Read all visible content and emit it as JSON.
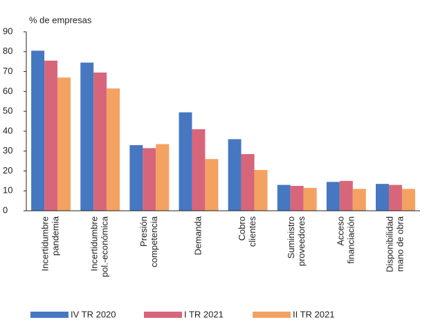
{
  "chart_data": {
    "type": "bar",
    "y_label": "% de empresas",
    "categories": [
      [
        "Incertidumbre",
        "pandemia"
      ],
      [
        "Incertidumbre",
        "pol.-económica"
      ],
      [
        "Presión",
        "competencia"
      ],
      [
        "Demanda"
      ],
      [
        "Cobro",
        "clientes"
      ],
      [
        "Suministro",
        "proveedores"
      ],
      [
        "Acceso",
        "financiación"
      ],
      [
        "Disponibilidad",
        "mano de obra"
      ]
    ],
    "series": [
      {
        "name": "IV TR 2020",
        "color": "#4677c1",
        "values": [
          80.5,
          74.5,
          33,
          49.5,
          36,
          13,
          14.5,
          13.5
        ]
      },
      {
        "name": "I TR 2021",
        "color": "#d8667b",
        "values": [
          75.5,
          69.5,
          31.5,
          41,
          28.5,
          12.5,
          15,
          13
        ]
      },
      {
        "name": "II TR 2021",
        "color": "#f4a262",
        "values": [
          67,
          61.5,
          33.5,
          26,
          20.5,
          11.5,
          11,
          11
        ]
      }
    ],
    "ylim": [
      0,
      90
    ],
    "yticks": [
      0,
      10,
      20,
      30,
      40,
      50,
      60,
      70,
      80,
      90
    ],
    "grid": false
  }
}
